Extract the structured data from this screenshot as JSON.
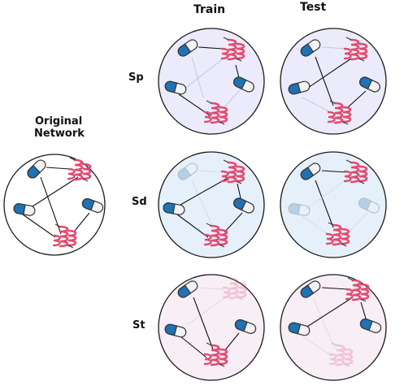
{
  "headers": {
    "train": "Train",
    "test": "Test"
  },
  "original_label": {
    "line1": "Original",
    "line2": "Network"
  },
  "rows": [
    {
      "label": "Sp",
      "fill": "#ebebfb"
    },
    {
      "label": "Sd",
      "fill": "#e6f0fb"
    },
    {
      "label": "St",
      "fill": "#f7eef6"
    }
  ],
  "colors": {
    "original_fill": "#ffffff",
    "circle_stroke": "#1a1a1a",
    "capsule_blue": "#1f72b4",
    "capsule_white": "#f2f2f2",
    "helix": "#e34a70",
    "edge_strong": "#111111",
    "edge_faint": "#c8c8d8"
  },
  "icons": {
    "drug": "capsule-icon",
    "protein": "protein-helix-icon"
  }
}
